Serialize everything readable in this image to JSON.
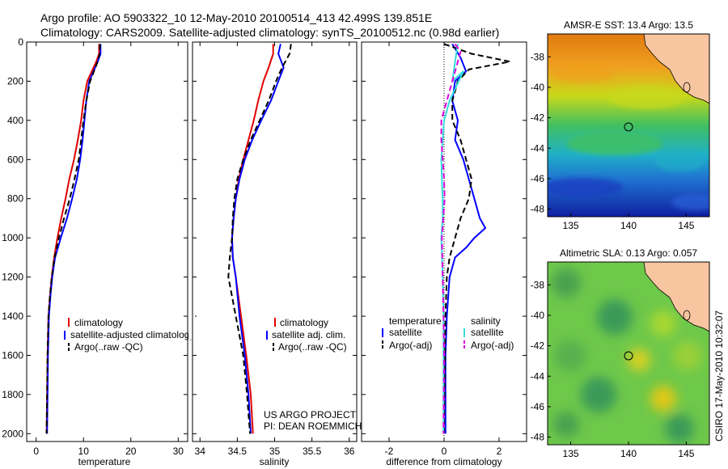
{
  "header": {
    "line1": "Argo profile: AO 5903322_10 12-May-2010 20100514_413 42.499S 139.851E",
    "line2": "Climatology: CARS2009. Satellite-adjusted climatology: synTS_20100512.nc (0.98d earlier)"
  },
  "credits": {
    "project": "US ARGO PROJECT",
    "pi": "PI: DEAN ROEMMICH",
    "stamp": "CSIRO 17-May-2010 10:32:07"
  },
  "colors": {
    "climatology": "#e00000",
    "satellite": "#0000ff",
    "argo": "#000000",
    "salinity_satellite": "#33dddd",
    "salinity_argo": "#dd00dd",
    "land": "#f7c59f"
  },
  "chart_data": [
    {
      "type": "line",
      "xlabel": "temperature",
      "ylabel": "",
      "xlim": [
        -2,
        32
      ],
      "ylim": [
        2040,
        0
      ],
      "xticks": [
        "0",
        "10",
        "20",
        "30"
      ],
      "yticks": [
        "0",
        "200",
        "400",
        "600",
        "800",
        "1000",
        "1200",
        "1400",
        "1600",
        "1800",
        "2000"
      ],
      "legend": {
        "placement": "lower-right",
        "entries": [
          "climatology",
          "satellite-adjusted climatology",
          "Argo(..raw -QC)"
        ]
      },
      "series": [
        {
          "name": "climatology",
          "color": "#e00000",
          "style": "solid",
          "x": [
            13.3,
            13.3,
            12.7,
            10.8,
            10.0,
            9.5,
            8.8,
            8.0,
            7.0,
            6.2,
            5.3,
            4.5,
            3.8,
            3.3,
            2.9,
            2.6,
            2.4,
            2.3,
            2.2
          ],
          "y": [
            10,
            60,
            100,
            200,
            300,
            400,
            500,
            600,
            700,
            800,
            900,
            1000,
            1100,
            1200,
            1300,
            1400,
            1600,
            1800,
            2000
          ]
        },
        {
          "name": "satellite-adjusted climatology",
          "color": "#0000ff",
          "style": "solid",
          "x": [
            13.6,
            13.6,
            13.0,
            11.2,
            10.6,
            10.2,
            9.8,
            9.3,
            8.6,
            7.6,
            6.5,
            5.2,
            4.0,
            3.4,
            3.0,
            2.7,
            2.5,
            2.4,
            2.3
          ],
          "y": [
            10,
            60,
            100,
            200,
            300,
            400,
            500,
            600,
            700,
            800,
            900,
            1000,
            1100,
            1200,
            1300,
            1400,
            1600,
            1800,
            2000
          ]
        },
        {
          "name": "Argo(..raw -QC)",
          "color": "#000000",
          "style": "dashed",
          "x": [
            13.5,
            13.4,
            13.0,
            11.4,
            10.6,
            10.0,
            9.5,
            9.0,
            8.1,
            7.1,
            5.9,
            4.8,
            3.9,
            3.3,
            2.9,
            2.6,
            2.4,
            2.3,
            2.2
          ],
          "y": [
            10,
            60,
            100,
            200,
            300,
            400,
            500,
            600,
            700,
            800,
            900,
            1000,
            1100,
            1200,
            1300,
            1400,
            1600,
            1800,
            2000
          ]
        }
      ]
    },
    {
      "type": "line",
      "xlabel": "salinity",
      "ylabel": "",
      "xlim": [
        33.9,
        36.1
      ],
      "ylim": [
        2040,
        0
      ],
      "xticks": [
        "34",
        "34.5",
        "35",
        "35.5",
        "36"
      ],
      "legend": {
        "placement": "lower-right",
        "entries": [
          "climatology",
          "satellite adj. clim.",
          "Argo(..raw -QC)"
        ]
      },
      "series": [
        {
          "name": "climatology",
          "color": "#e00000",
          "style": "solid",
          "x": [
            34.98,
            34.98,
            34.92,
            34.85,
            34.78,
            34.72,
            34.65,
            34.58,
            34.52,
            34.48,
            34.45,
            34.43,
            34.44,
            34.48,
            34.55,
            34.62,
            34.68,
            34.71
          ],
          "y": [
            10,
            60,
            130,
            200,
            300,
            400,
            500,
            600,
            700,
            800,
            900,
            1000,
            1100,
            1200,
            1400,
            1600,
            1800,
            2000
          ]
        },
        {
          "name": "satellite adj. clim.",
          "color": "#0000ff",
          "style": "solid",
          "x": [
            35.08,
            35.05,
            35.12,
            35.05,
            34.95,
            34.82,
            34.7,
            34.6,
            34.53,
            34.48,
            34.45,
            34.43,
            34.44,
            34.48,
            34.53,
            34.6,
            34.65,
            34.68
          ],
          "y": [
            10,
            60,
            130,
            200,
            300,
            400,
            500,
            600,
            700,
            800,
            900,
            1000,
            1100,
            1200,
            1400,
            1600,
            1800,
            2000
          ]
        },
        {
          "name": "Argo(..raw -QC)",
          "color": "#000000",
          "style": "dashed",
          "x": [
            35.22,
            35.2,
            35.1,
            35.02,
            34.92,
            34.8,
            34.68,
            34.58,
            34.5,
            34.46,
            34.44,
            34.43,
            34.4,
            34.38,
            34.48,
            34.58,
            34.63,
            34.67
          ],
          "y": [
            10,
            60,
            130,
            200,
            300,
            400,
            500,
            600,
            700,
            800,
            900,
            1000,
            1100,
            1200,
            1400,
            1600,
            1800,
            2000
          ]
        }
      ]
    },
    {
      "type": "line",
      "xlabel": "difference from climatology",
      "ylabel": "",
      "xlim": [
        -3,
        3
      ],
      "ylim": [
        2040,
        0
      ],
      "xticks": [
        "-2",
        "0",
        "2"
      ],
      "legend": {
        "placement": "lower-right",
        "groups": [
          "temperature",
          "salinity"
        ],
        "entries": [
          "satellite",
          "Argo(-adj)",
          "satellite",
          "Argo(-adj)"
        ]
      },
      "series": [
        {
          "name": "temperature satellite",
          "color": "#0000ff",
          "style": "solid",
          "x": [
            0.3,
            0.6,
            0.8,
            0.4,
            0.3,
            0.5,
            0.4,
            0.7,
            0.9,
            1.1,
            1.3,
            1.5,
            1.1,
            0.8,
            0.4,
            0.2,
            0.1,
            0.05,
            0.05
          ],
          "y": [
            10,
            80,
            150,
            200,
            300,
            400,
            500,
            600,
            700,
            800,
            900,
            950,
            1000,
            1050,
            1100,
            1200,
            1400,
            1600,
            2000
          ]
        },
        {
          "name": "temperature Argo(-adj)",
          "color": "#000000",
          "style": "dashed",
          "x": [
            0.0,
            1.0,
            2.4,
            0.9,
            0.5,
            0.3,
            0.3,
            0.6,
            0.8,
            1.0,
            0.9,
            0.6,
            0.4,
            0.2,
            0.1,
            0.05,
            0.0
          ],
          "y": [
            10,
            60,
            100,
            140,
            200,
            300,
            400,
            500,
            600,
            700,
            800,
            900,
            1000,
            1100,
            1200,
            1400,
            2000
          ]
        },
        {
          "name": "salinity satellite",
          "color": "#33dddd",
          "style": "solid",
          "x": [
            0.5,
            0.4,
            0.3,
            0.7,
            0.2,
            0.0,
            -0.05,
            -0.1,
            -0.08,
            -0.05,
            -0.05,
            -0.1,
            -0.05,
            -0.02,
            -0.02,
            -0.02
          ],
          "y": [
            10,
            100,
            200,
            150,
            300,
            400,
            500,
            600,
            700,
            800,
            900,
            1000,
            1200,
            1400,
            1600,
            2000
          ]
        },
        {
          "name": "salinity Argo(-adj)",
          "color": "#dd00dd",
          "style": "dashed",
          "x": [
            0.4,
            0.6,
            0.4,
            0.1,
            -0.1,
            -0.1,
            -0.05,
            0.0,
            0.02,
            -0.03,
            -0.08,
            -0.05,
            -0.02,
            0.0,
            -0.02
          ],
          "y": [
            10,
            50,
            150,
            300,
            400,
            500,
            600,
            700,
            800,
            900,
            1000,
            1200,
            1400,
            1600,
            2000
          ]
        }
      ]
    },
    {
      "type": "heatmap",
      "title": "AMSR-E SST: 13.4 Argo: 13.5",
      "xlim": [
        133,
        147
      ],
      "ylim": [
        -48.5,
        -36.5
      ],
      "xticks": [
        "135",
        "140",
        "145"
      ],
      "yticks": [
        "-38",
        "-40",
        "-42",
        "-44",
        "-46",
        "-48"
      ],
      "marker": {
        "lon": 139.85,
        "lat": -42.5
      }
    },
    {
      "type": "heatmap",
      "title": "Altimetric SLA: 0.13 Argo: 0.057",
      "xlim": [
        133,
        147
      ],
      "ylim": [
        -48.5,
        -36.5
      ],
      "xticks": [
        "135",
        "140",
        "145"
      ],
      "yticks": [
        "-38",
        "-40",
        "-42",
        "-44",
        "-46",
        "-48"
      ],
      "marker": {
        "lon": 139.85,
        "lat": -42.5
      }
    }
  ]
}
